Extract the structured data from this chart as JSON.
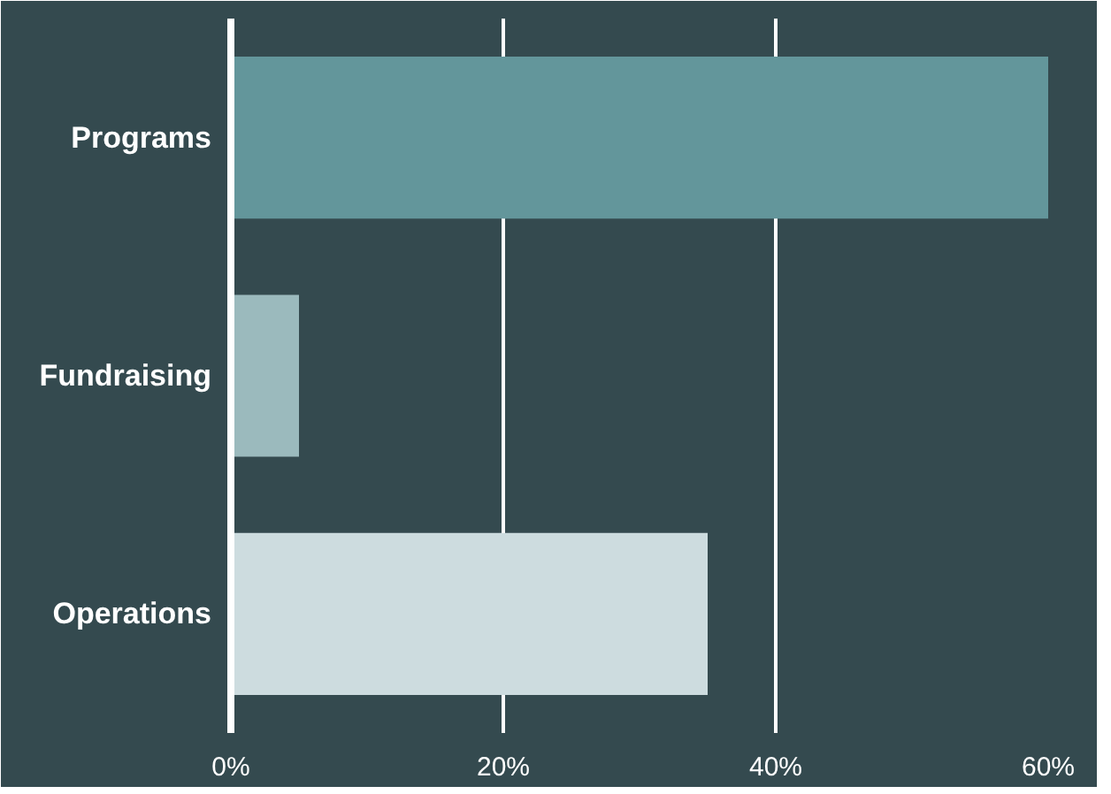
{
  "chart_data": {
    "type": "bar",
    "orientation": "horizontal",
    "categories": [
      "Programs",
      "Fundraising",
      "Operations"
    ],
    "values": [
      60,
      5,
      35
    ],
    "colors": [
      "#63969b",
      "#9bbabd",
      "#cddcdf"
    ],
    "xlim": [
      0,
      60
    ],
    "xticks": [
      {
        "value": 0,
        "label": "0%"
      },
      {
        "value": 20,
        "label": "20%"
      },
      {
        "value": 40,
        "label": "40%"
      },
      {
        "value": 60,
        "label": "60%"
      }
    ],
    "grid": "x"
  }
}
